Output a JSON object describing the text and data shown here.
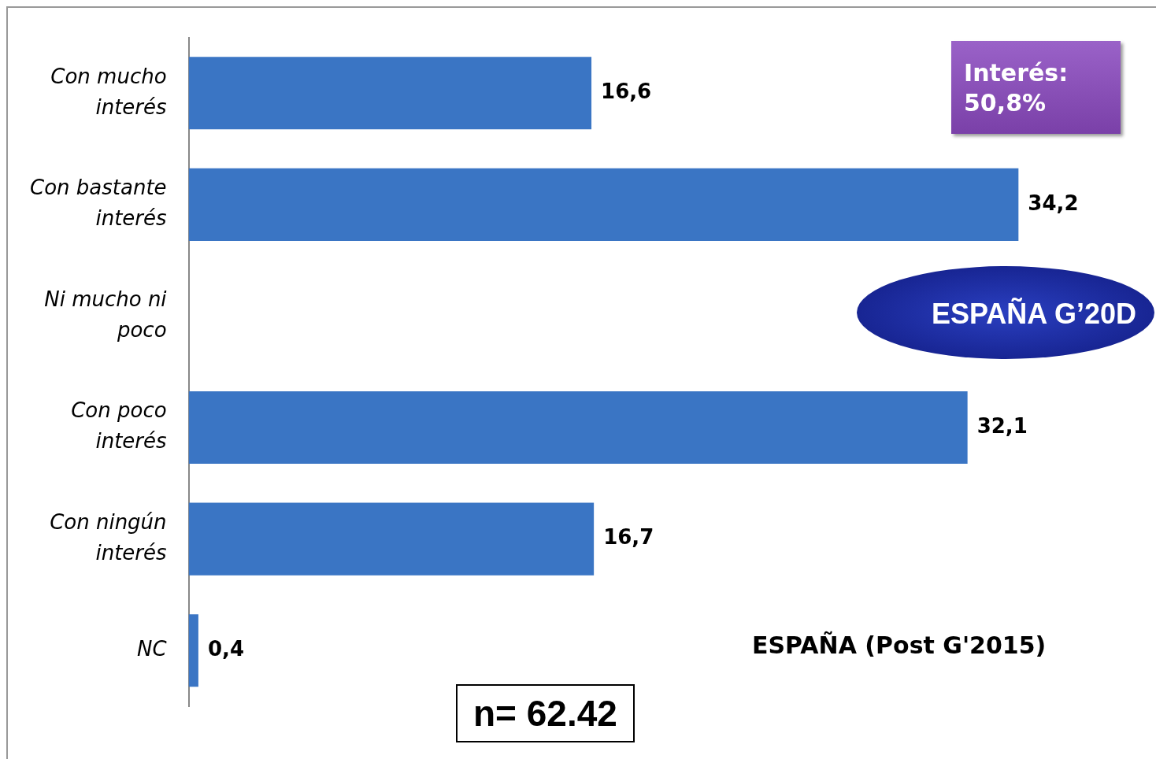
{
  "chart_data": {
    "type": "bar",
    "orientation": "horizontal",
    "categories": [
      "Con mucho interés",
      "Con bastante interés",
      "Ni mucho ni poco",
      "Con poco interés",
      "Con ningún interés",
      "NC"
    ],
    "values": [
      16.6,
      34.2,
      null,
      32.1,
      16.7,
      0.4
    ],
    "value_labels": [
      "16,6",
      "34,2",
      null,
      "32,1",
      "16,7",
      "0,4"
    ],
    "color": "#3a75c4",
    "tick_labels": "y",
    "annotations": [
      "Interés: 50,8%",
      "ESPAÑA G’20D",
      "ESPAÑA (Post G'2015)",
      "n= 62.42"
    ]
  }
}
